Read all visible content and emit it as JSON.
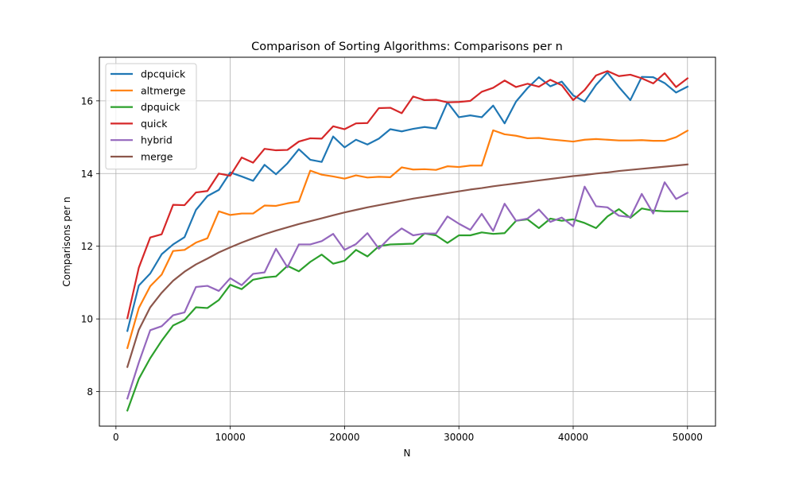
{
  "chart_data": {
    "type": "line",
    "title": "Comparison of Sorting Algorithms: Comparisons per n",
    "xlabel": "N",
    "ylabel": "Comparisons per n",
    "xlim": [
      -1450,
      52450
    ],
    "ylim": [
      7.05,
      17.2
    ],
    "xticks": [
      0,
      10000,
      20000,
      30000,
      40000,
      50000
    ],
    "xtick_labels": [
      "0",
      "10000",
      "20000",
      "30000",
      "40000",
      "50000"
    ],
    "yticks": [
      8,
      10,
      12,
      14,
      16
    ],
    "ytick_labels": [
      "8",
      "10",
      "12",
      "14",
      "16"
    ],
    "grid": true,
    "legend_position": "upper-left",
    "x": [
      1000,
      2000,
      3000,
      4000,
      5000,
      6000,
      7000,
      8000,
      9000,
      10000,
      11000,
      12000,
      13000,
      14000,
      15000,
      16000,
      17000,
      18000,
      19000,
      20000,
      21000,
      22000,
      23000,
      24000,
      25000,
      26000,
      27000,
      28000,
      29000,
      30000,
      31000,
      32000,
      33000,
      34000,
      35000,
      36000,
      37000,
      38000,
      39000,
      40000,
      41000,
      42000,
      43000,
      44000,
      45000,
      46000,
      47000,
      48000,
      49000,
      50000
    ],
    "series": [
      {
        "name": "dpcquick",
        "color": "#1f77b4",
        "values": [
          9.67,
          10.92,
          11.25,
          11.78,
          12.05,
          12.25,
          13.0,
          13.38,
          13.55,
          14.03,
          13.92,
          13.8,
          14.24,
          13.98,
          14.28,
          14.67,
          14.38,
          14.32,
          15.02,
          14.72,
          14.93,
          14.8,
          14.96,
          15.22,
          15.16,
          15.23,
          15.28,
          15.24,
          15.96,
          15.55,
          15.6,
          15.55,
          15.87,
          15.38,
          15.98,
          16.35,
          16.65,
          16.4,
          16.53,
          16.15,
          15.98,
          16.44,
          16.78,
          16.38,
          16.02,
          16.66,
          16.65,
          16.49,
          16.23,
          16.39
        ]
      },
      {
        "name": "altmerge",
        "color": "#ff7f0e",
        "values": [
          9.2,
          10.3,
          10.9,
          11.22,
          11.87,
          11.9,
          12.1,
          12.22,
          12.96,
          12.86,
          12.9,
          12.9,
          13.12,
          13.11,
          13.18,
          13.23,
          14.08,
          13.97,
          13.92,
          13.86,
          13.95,
          13.89,
          13.91,
          13.9,
          14.17,
          14.11,
          14.12,
          14.1,
          14.2,
          14.18,
          14.22,
          14.22,
          15.19,
          15.08,
          15.04,
          14.97,
          14.98,
          14.94,
          14.91,
          14.88,
          14.93,
          14.95,
          14.93,
          14.91,
          14.91,
          14.92,
          14.9,
          14.9,
          15.0,
          15.18
        ]
      },
      {
        "name": "dpquick",
        "color": "#2ca02c",
        "values": [
          7.48,
          8.35,
          8.92,
          9.4,
          9.82,
          9.97,
          10.32,
          10.3,
          10.52,
          10.94,
          10.82,
          11.08,
          11.14,
          11.17,
          11.46,
          11.31,
          11.57,
          11.77,
          11.52,
          11.6,
          11.9,
          11.72,
          12.0,
          12.05,
          12.06,
          12.07,
          12.35,
          12.3,
          12.09,
          12.3,
          12.3,
          12.38,
          12.34,
          12.36,
          12.7,
          12.74,
          12.5,
          12.76,
          12.7,
          12.74,
          12.64,
          12.5,
          12.82,
          13.02,
          12.78,
          13.04,
          12.98,
          12.96,
          12.96,
          12.96
        ]
      },
      {
        "name": "quick",
        "color": "#d62728",
        "values": [
          10.02,
          11.41,
          12.24,
          12.33,
          13.14,
          13.13,
          13.48,
          13.52,
          14.0,
          13.94,
          14.44,
          14.3,
          14.68,
          14.64,
          14.65,
          14.88,
          14.97,
          14.96,
          15.3,
          15.22,
          15.38,
          15.39,
          15.8,
          15.81,
          15.66,
          16.12,
          16.02,
          16.03,
          15.96,
          15.97,
          16.0,
          16.25,
          16.36,
          16.56,
          16.38,
          16.47,
          16.39,
          16.58,
          16.43,
          16.02,
          16.3,
          16.7,
          16.82,
          16.68,
          16.72,
          16.62,
          16.48,
          16.76,
          16.38,
          16.62
        ]
      },
      {
        "name": "hybrid",
        "color": "#9467bd",
        "values": [
          7.81,
          8.8,
          9.69,
          9.8,
          10.1,
          10.18,
          10.88,
          10.91,
          10.77,
          11.12,
          10.93,
          11.24,
          11.28,
          11.93,
          11.42,
          12.05,
          12.05,
          12.14,
          12.34,
          11.9,
          12.06,
          12.36,
          11.93,
          12.25,
          12.49,
          12.3,
          12.35,
          12.35,
          12.82,
          12.62,
          12.45,
          12.89,
          12.42,
          13.17,
          12.7,
          12.76,
          13.01,
          12.67,
          12.79,
          12.55,
          13.64,
          13.1,
          13.07,
          12.84,
          12.8,
          13.44,
          12.9,
          13.76,
          13.3,
          13.47
        ]
      },
      {
        "name": "merge",
        "color": "#8c564b",
        "values": [
          8.68,
          9.7,
          10.32,
          10.72,
          11.05,
          11.3,
          11.5,
          11.66,
          11.83,
          11.97,
          12.1,
          12.22,
          12.33,
          12.43,
          12.52,
          12.61,
          12.69,
          12.77,
          12.85,
          12.93,
          13.0,
          13.07,
          13.13,
          13.19,
          13.25,
          13.31,
          13.36,
          13.41,
          13.46,
          13.51,
          13.56,
          13.6,
          13.65,
          13.69,
          13.73,
          13.77,
          13.81,
          13.85,
          13.89,
          13.93,
          13.96,
          14.0,
          14.03,
          14.07,
          14.1,
          14.13,
          14.16,
          14.19,
          14.22,
          14.25
        ]
      }
    ]
  }
}
